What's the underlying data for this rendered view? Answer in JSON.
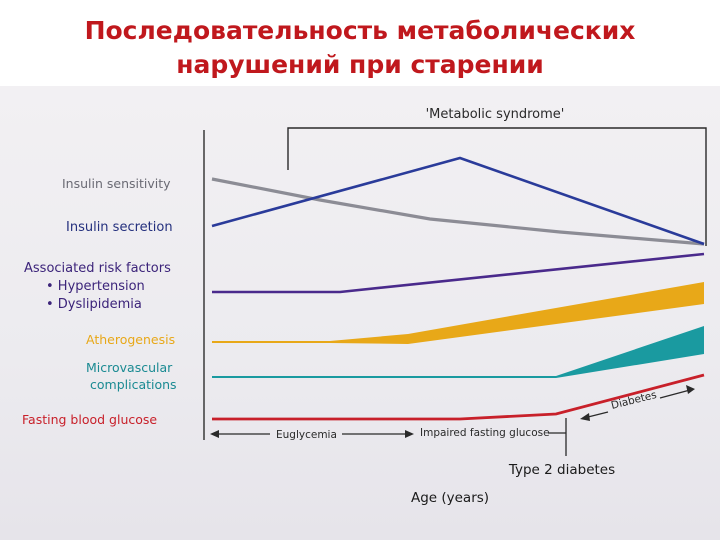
{
  "slide": {
    "title_line1": "Последовательность  метаболических",
    "title_line2": "нарушений  при старении"
  },
  "figure": {
    "bracket_label": "'Metabolic syndrome'",
    "rows": {
      "insulin_sensitivity": "Insulin sensitivity",
      "insulin_secretion": "Insulin secretion",
      "risk_factors": "Associated risk factors",
      "hypertension": "• Hypertension",
      "dyslipidemia": "• Dyslipidemia",
      "atherogenesis": "Atherogenesis",
      "microvascular_1": "Microvascular",
      "microvascular_2": "complications",
      "fasting_glucose": "Fasting blood glucose"
    },
    "stages": {
      "euglycemia": "Euglycemia",
      "impaired": "Impaired fasting glucose",
      "diabetes": "Diabetes"
    },
    "diagnosis_label": "Type 2 diabetes",
    "x_axis_label": "Age (years)"
  },
  "colors": {
    "title": "#c0181d",
    "insulin_sensitivity": "#8c8c95",
    "insulin_secretion": "#2a3b9a",
    "risk_factors": "#4a2a8c",
    "atherogenesis": "#e8a818",
    "microvascular": "#1a9aa0",
    "fasting_glucose": "#c8202a"
  }
}
